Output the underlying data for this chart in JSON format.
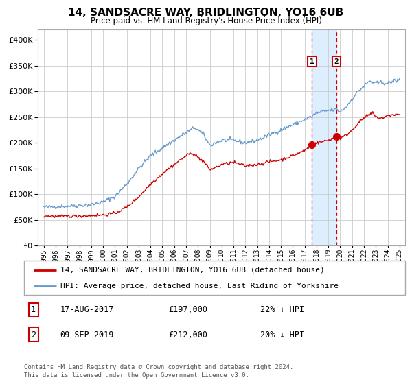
{
  "title": "14, SANDSACRE WAY, BRIDLINGTON, YO16 6UB",
  "subtitle": "Price paid vs. HM Land Registry's House Price Index (HPI)",
  "red_label": "14, SANDSACRE WAY, BRIDLINGTON, YO16 6UB (detached house)",
  "blue_label": "HPI: Average price, detached house, East Riding of Yorkshire",
  "footnote1": "Contains HM Land Registry data © Crown copyright and database right 2024.",
  "footnote2": "This data is licensed under the Open Government Licence v3.0.",
  "transaction1": {
    "label": "1",
    "date": "17-AUG-2017",
    "price": "£197,000",
    "hpi": "22% ↓ HPI"
  },
  "transaction2": {
    "label": "2",
    "date": "09-SEP-2019",
    "price": "£212,000",
    "hpi": "20% ↓ HPI"
  },
  "sale1_year": 2017.625,
  "sale1_price": 197000,
  "sale2_year": 2019.69,
  "sale2_price": 212000,
  "shade_start": 2017.625,
  "shade_end": 2019.69,
  "vline1_x": 2017.625,
  "vline2_x": 2019.69,
  "ylim": [
    0,
    420000
  ],
  "xlim_start": 1994.5,
  "xlim_end": 2025.5,
  "red_color": "#cc0000",
  "blue_color": "#6699cc",
  "shade_color": "#ddeeff",
  "background_color": "#ffffff",
  "grid_color": "#cccccc",
  "hpi_anchors": [
    [
      1995.0,
      75000
    ],
    [
      1996.0,
      76000
    ],
    [
      1997.0,
      77000
    ],
    [
      1998.0,
      78500
    ],
    [
      1999.0,
      80000
    ],
    [
      2000.0,
      85000
    ],
    [
      2001.0,
      96000
    ],
    [
      2002.0,
      120000
    ],
    [
      2003.0,
      150000
    ],
    [
      2004.0,
      175000
    ],
    [
      2005.0,
      190000
    ],
    [
      2006.0,
      205000
    ],
    [
      2007.0,
      220000
    ],
    [
      2007.75,
      230000
    ],
    [
      2008.5,
      215000
    ],
    [
      2009.0,
      195000
    ],
    [
      2009.5,
      200000
    ],
    [
      2010.0,
      205000
    ],
    [
      2011.0,
      205000
    ],
    [
      2012.0,
      200000
    ],
    [
      2013.0,
      205000
    ],
    [
      2014.0,
      215000
    ],
    [
      2015.0,
      225000
    ],
    [
      2016.0,
      235000
    ],
    [
      2017.0,
      245000
    ],
    [
      2017.625,
      252000
    ],
    [
      2018.0,
      258000
    ],
    [
      2019.0,
      263000
    ],
    [
      2019.69,
      265000
    ],
    [
      2020.0,
      260000
    ],
    [
      2020.5,
      270000
    ],
    [
      2021.0,
      285000
    ],
    [
      2021.5,
      300000
    ],
    [
      2022.0,
      310000
    ],
    [
      2022.5,
      320000
    ],
    [
      2023.0,
      315000
    ],
    [
      2023.5,
      318000
    ],
    [
      2024.0,
      315000
    ],
    [
      2024.5,
      320000
    ],
    [
      2025.0,
      322000
    ]
  ],
  "red_anchors": [
    [
      1995.0,
      58000
    ],
    [
      1996.0,
      57000
    ],
    [
      1997.0,
      57500
    ],
    [
      1998.0,
      58000
    ],
    [
      1999.0,
      59000
    ],
    [
      2000.0,
      60000
    ],
    [
      2001.0,
      63000
    ],
    [
      2002.0,
      75000
    ],
    [
      2003.0,
      95000
    ],
    [
      2004.0,
      120000
    ],
    [
      2005.0,
      140000
    ],
    [
      2006.0,
      158000
    ],
    [
      2007.0,
      175000
    ],
    [
      2007.5,
      181000
    ],
    [
      2008.5,
      163000
    ],
    [
      2009.0,
      148000
    ],
    [
      2009.5,
      152000
    ],
    [
      2010.0,
      158000
    ],
    [
      2011.0,
      162000
    ],
    [
      2012.0,
      155000
    ],
    [
      2013.0,
      158000
    ],
    [
      2014.0,
      163000
    ],
    [
      2015.0,
      167000
    ],
    [
      2016.0,
      175000
    ],
    [
      2017.0,
      185000
    ],
    [
      2017.625,
      197000
    ],
    [
      2018.0,
      200000
    ],
    [
      2019.0,
      205000
    ],
    [
      2019.69,
      212000
    ],
    [
      2020.0,
      208000
    ],
    [
      2020.5,
      215000
    ],
    [
      2021.0,
      225000
    ],
    [
      2021.5,
      238000
    ],
    [
      2022.0,
      248000
    ],
    [
      2022.5,
      255000
    ],
    [
      2022.75,
      258000
    ],
    [
      2023.0,
      250000
    ],
    [
      2023.5,
      248000
    ],
    [
      2024.0,
      252000
    ],
    [
      2024.5,
      255000
    ],
    [
      2025.0,
      255000
    ]
  ]
}
